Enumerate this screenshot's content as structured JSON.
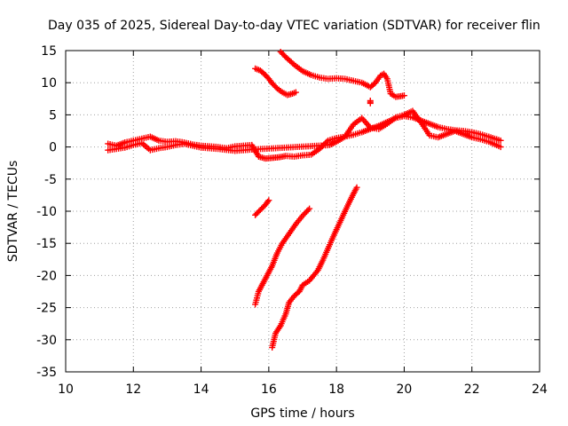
{
  "chart_data": {
    "type": "scatter",
    "title": "Day 035 of 2025, Sidereal Day-to-day VTEC variation (SDTVAR) for receiver flin",
    "xlabel": "GPS time / hours",
    "ylabel": "SDTVAR / TECUs",
    "xlim": [
      10,
      24
    ],
    "ylim": [
      -35,
      15
    ],
    "xticks": [
      10,
      12,
      14,
      16,
      18,
      20,
      22,
      24
    ],
    "yticks": [
      15,
      10,
      5,
      0,
      -5,
      -10,
      -15,
      -20,
      -25,
      -30,
      -35
    ],
    "grid": true,
    "legend": "none",
    "marker": "plus",
    "color": "#ff0000",
    "series": [
      {
        "name": "main-track",
        "x": [
          11.25,
          11.5,
          11.75,
          12.0,
          12.25,
          12.5,
          12.75,
          13.0,
          13.25,
          13.5,
          13.75,
          14.0,
          14.25,
          14.5,
          14.75,
          15.0,
          15.25,
          15.5,
          15.7,
          15.9,
          16.1,
          16.3,
          16.5,
          16.75,
          17.0,
          17.25,
          17.5,
          17.75,
          18.0,
          18.25,
          18.5,
          18.75,
          19.0,
          19.25,
          19.5,
          19.75,
          20.0,
          20.25,
          20.5,
          20.75,
          21.0,
          21.25,
          21.5,
          21.75,
          22.0,
          22.25,
          22.5,
          22.85
        ],
        "y": [
          0.5,
          0.2,
          0.7,
          1.0,
          1.3,
          1.6,
          1.0,
          0.8,
          0.9,
          0.7,
          0.4,
          0.2,
          0.1,
          0.0,
          -0.2,
          0.1,
          0.2,
          0.3,
          -1.5,
          -1.8,
          -1.7,
          -1.6,
          -1.4,
          -1.5,
          -1.3,
          -1.2,
          -0.3,
          1.0,
          1.4,
          1.6,
          1.9,
          2.3,
          2.8,
          3.3,
          3.9,
          4.5,
          4.8,
          4.6,
          4.1,
          3.6,
          3.1,
          2.8,
          2.6,
          2.5,
          2.3,
          2.0,
          1.6,
          1.0
        ]
      },
      {
        "name": "secondary-track",
        "x": [
          11.25,
          11.5,
          11.75,
          12.0,
          12.25,
          12.5,
          12.75,
          13.0,
          13.25,
          13.5,
          13.75,
          14.0,
          14.5,
          15.0,
          15.5,
          17.8,
          18.0,
          18.25,
          18.5,
          18.75,
          19.0,
          19.25,
          19.5,
          19.75,
          20.0,
          20.25,
          20.5,
          20.75,
          21.0,
          21.25,
          21.5,
          21.75,
          22.0,
          22.25,
          22.5,
          22.85
        ],
        "y": [
          -0.5,
          -0.3,
          -0.1,
          0.3,
          0.6,
          -0.5,
          -0.2,
          0.0,
          0.3,
          0.5,
          0.2,
          -0.1,
          -0.3,
          -0.6,
          -0.4,
          0.3,
          0.8,
          1.6,
          3.5,
          4.5,
          3.0,
          2.8,
          3.6,
          4.6,
          5.0,
          5.6,
          3.8,
          1.8,
          1.5,
          2.0,
          2.5,
          2.0,
          1.5,
          1.2,
          0.8,
          0.0
        ]
      },
      {
        "name": "upper-arc",
        "x": [
          16.35,
          16.5,
          16.75,
          17.0,
          17.25,
          17.5,
          17.75,
          18.0,
          18.25,
          18.5,
          18.75,
          18.9,
          19.0,
          19.15,
          19.3,
          19.4,
          19.5,
          19.6,
          19.75,
          19.9,
          20.0
        ],
        "y": [
          14.8,
          14.0,
          12.8,
          11.8,
          11.2,
          10.8,
          10.6,
          10.7,
          10.6,
          10.3,
          10.0,
          9.6,
          9.3,
          10.0,
          11.1,
          11.4,
          10.6,
          8.3,
          7.8,
          7.9,
          8.0
        ]
      },
      {
        "name": "upper-hook",
        "x": [
          15.6,
          15.75,
          15.9,
          16.0,
          16.1,
          16.25,
          16.4,
          16.55,
          16.7,
          16.8
        ],
        "y": [
          12.2,
          11.9,
          11.2,
          10.6,
          9.9,
          9.1,
          8.5,
          8.1,
          8.3,
          8.5
        ]
      },
      {
        "name": "spike-19",
        "x": [
          19.0,
          19.0,
          19.0
        ],
        "y": [
          6.8,
          7.0,
          7.2
        ]
      },
      {
        "name": "descent-a",
        "x": [
          15.6,
          15.75,
          15.9,
          16.0
        ],
        "y": [
          -10.6,
          -9.8,
          -9.0,
          -8.3
        ]
      },
      {
        "name": "descent-b",
        "x": [
          15.6,
          15.7,
          15.8,
          15.9,
          16.0,
          16.1,
          16.25,
          16.4,
          16.6,
          16.8,
          17.0,
          17.2
        ],
        "y": [
          -24.5,
          -22.5,
          -21.5,
          -20.5,
          -19.5,
          -18.5,
          -16.5,
          -15.0,
          -13.5,
          -12.0,
          -10.7,
          -9.6
        ]
      },
      {
        "name": "descent-c",
        "x": [
          16.1,
          16.2,
          16.35,
          16.5,
          16.6,
          16.75,
          16.9,
          17.0,
          17.2,
          17.45,
          17.6,
          17.75,
          17.9,
          18.05,
          18.2,
          18.35,
          18.5,
          18.6
        ],
        "y": [
          -31.2,
          -29.0,
          -27.8,
          -26.0,
          -24.2,
          -23.2,
          -22.5,
          -21.5,
          -20.8,
          -19.2,
          -17.6,
          -15.8,
          -14.0,
          -12.3,
          -10.6,
          -8.9,
          -7.3,
          -6.3
        ]
      }
    ]
  }
}
